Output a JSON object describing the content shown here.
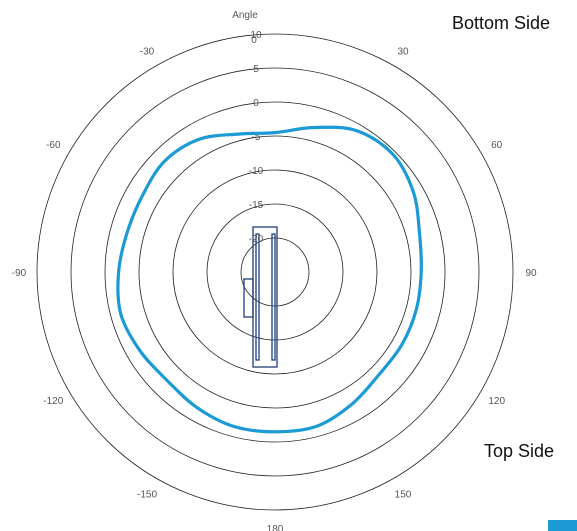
{
  "chart_data": {
    "type": "polar-line",
    "angular_axis_title": "Angle",
    "angular_ticks": [
      0,
      30,
      60,
      90,
      120,
      150,
      180,
      -150,
      -120,
      -90,
      -60,
      -30
    ],
    "radial_ticks": [
      10,
      5,
      0,
      -5,
      -10,
      -15,
      -20
    ],
    "radial_range": [
      -25,
      10
    ],
    "series": [
      {
        "color": "#1b9ad6",
        "theta": [
          0,
          15,
          30,
          45,
          60,
          75,
          90,
          105,
          120,
          135,
          150,
          165,
          180,
          -165,
          -150,
          -135,
          -120,
          -105,
          -90,
          -75,
          -60,
          -45,
          -30,
          -15
        ],
        "r": [
          -4.5,
          -3,
          -1,
          -0.5,
          -1.5,
          -3,
          -3.5,
          -3.5,
          -3.5,
          -3.5,
          -2.5,
          -1.5,
          -1.5,
          -1.5,
          -2,
          -2.5,
          -2,
          -1.5,
          -2,
          -2.5,
          -2.5,
          -2,
          -2.5,
          -4
        ]
      }
    ]
  },
  "annotations": {
    "bottom_side": "Bottom Side",
    "top_side": "Top Side"
  },
  "colors": {
    "series": "#1b9ad6",
    "device": "#1f3d7a",
    "rings": "#222222"
  }
}
